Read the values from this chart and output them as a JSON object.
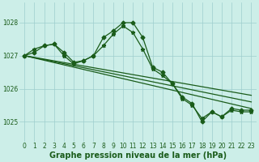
{
  "title": "Graphe pression niveau de la mer (hPa)",
  "bg_color": "#cceee8",
  "grid_color": "#9ecece",
  "line_color": "#1a5c1a",
  "ylim": [
    1024.4,
    1028.6
  ],
  "xlim": [
    -0.5,
    23.5
  ],
  "yticks": [
    1025,
    1026,
    1027,
    1028
  ],
  "xticks": [
    0,
    1,
    2,
    3,
    4,
    5,
    6,
    7,
    8,
    9,
    10,
    11,
    12,
    13,
    14,
    15,
    16,
    17,
    18,
    19,
    20,
    21,
    22,
    23
  ],
  "title_fontsize": 7.0,
  "tick_fontsize": 5.5,
  "series_zigzag": [
    {
      "x": [
        0,
        1,
        2,
        3,
        4,
        5,
        6,
        7,
        8,
        9,
        10,
        11,
        12,
        13,
        14,
        15,
        16,
        17,
        18,
        19,
        20,
        21,
        22,
        23
      ],
      "y": [
        1027.0,
        1027.1,
        1027.3,
        1027.35,
        1027.1,
        1026.8,
        1026.85,
        1027.0,
        1027.55,
        1027.75,
        1028.0,
        1028.0,
        1027.55,
        1026.65,
        1026.5,
        1026.15,
        1025.75,
        1025.55,
        1025.0,
        1025.3,
        1025.15,
        1025.4,
        1025.35,
        1025.35
      ],
      "marker": "D",
      "lw": 0.9
    },
    {
      "x": [
        0,
        1,
        2,
        3,
        4,
        5,
        6,
        7,
        8,
        9,
        10,
        11,
        12,
        13,
        14,
        15,
        16,
        17,
        18,
        19,
        20,
        21,
        22,
        23
      ],
      "y": [
        1027.0,
        1027.2,
        1027.3,
        1027.35,
        1027.0,
        1026.75,
        1026.85,
        1027.0,
        1027.3,
        1027.65,
        1027.9,
        1027.7,
        1027.2,
        1026.6,
        1026.4,
        1026.15,
        1025.7,
        1025.5,
        1025.1,
        1025.3,
        1025.15,
        1025.35,
        1025.3,
        1025.3
      ],
      "marker": "*",
      "lw": 0.9
    }
  ],
  "series_linear": [
    {
      "x": [
        0,
        23
      ],
      "y": [
        1027.0,
        1025.8
      ],
      "lw": 0.9
    },
    {
      "x": [
        0,
        23
      ],
      "y": [
        1027.0,
        1025.6
      ],
      "lw": 0.9
    },
    {
      "x": [
        0,
        23
      ],
      "y": [
        1027.0,
        1025.4
      ],
      "lw": 0.9
    }
  ]
}
